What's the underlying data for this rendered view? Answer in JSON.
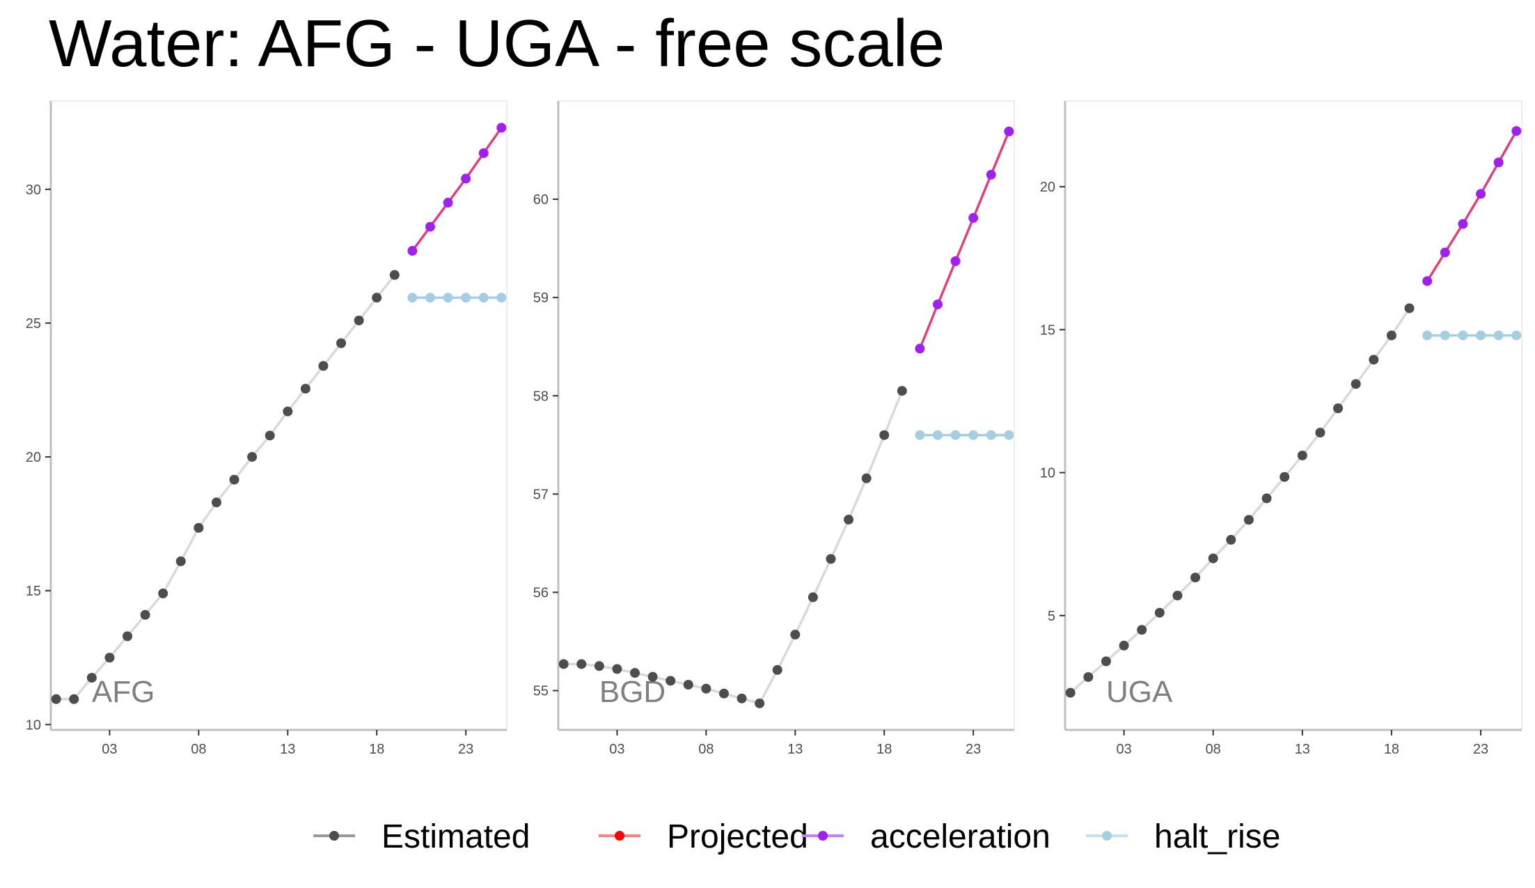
{
  "title": "Water: AFG - UGA - free scale",
  "colors": {
    "estimated_point": "#4d4d4d",
    "estimated_line": "#d9d9d9",
    "projected": "#ff0000",
    "acceleration_point": "#a020f0",
    "acceleration_line": "#e0407a",
    "halt_rise": "#a6cee3",
    "axis": "#bfbfbf",
    "tick_label": "#4d4d4d",
    "country_label": "#808080"
  },
  "legend": [
    {
      "key": "estimated",
      "label": "Estimated",
      "color": "#4d4d4d",
      "line": "#999999"
    },
    {
      "key": "projected",
      "label": "Projected",
      "color": "#ff0000",
      "line": "#ff8080"
    },
    {
      "key": "acceleration",
      "label": "acceleration",
      "color": "#a020f0",
      "line": "#c77dff"
    },
    {
      "key": "halt_rise",
      "label": "halt_rise",
      "color": "#a6cee3",
      "line": "#c8dff0"
    }
  ],
  "chart_data": [
    {
      "type": "line",
      "panel_label": "AFG",
      "x_ticks": [
        3,
        8,
        13,
        18,
        23
      ],
      "x_tick_labels": [
        "03",
        "08",
        "13",
        "18",
        "23"
      ],
      "y_ticks": [
        10,
        15,
        20,
        25,
        30
      ],
      "xlim": [
        -0.3,
        25.3
      ],
      "ylim": [
        9.8,
        33.3
      ],
      "series": [
        {
          "name": "Estimated",
          "x": [
            0,
            1,
            2,
            3,
            4,
            5,
            6,
            7,
            8,
            9,
            10,
            11,
            12,
            13,
            14,
            15,
            16,
            17,
            18,
            19
          ],
          "y": [
            10.95,
            10.95,
            11.75,
            12.5,
            13.3,
            14.1,
            14.9,
            16.1,
            17.35,
            18.3,
            19.15,
            20.0,
            20.8,
            21.7,
            22.55,
            23.4,
            24.25,
            25.1,
            25.95,
            26.8
          ]
        },
        {
          "name": "acceleration",
          "x": [
            20,
            21,
            22,
            23,
            24,
            25
          ],
          "y": [
            27.7,
            28.6,
            29.5,
            30.4,
            31.35,
            32.3
          ]
        },
        {
          "name": "halt_rise",
          "x": [
            20,
            21,
            22,
            23,
            24,
            25
          ],
          "y": [
            25.95,
            25.95,
            25.95,
            25.95,
            25.95,
            25.95
          ]
        }
      ]
    },
    {
      "type": "line",
      "panel_label": "BGD",
      "x_ticks": [
        3,
        8,
        13,
        18,
        23
      ],
      "x_tick_labels": [
        "03",
        "08",
        "13",
        "18",
        "23"
      ],
      "y_ticks": [
        55,
        56,
        57,
        58,
        59,
        60
      ],
      "xlim": [
        -0.3,
        25.3
      ],
      "ylim": [
        54.6,
        61.0
      ],
      "series": [
        {
          "name": "Estimated",
          "x": [
            0,
            1,
            2,
            3,
            4,
            5,
            6,
            7,
            8,
            9,
            10,
            11,
            12,
            13,
            14,
            15,
            16,
            17,
            18,
            19
          ],
          "y": [
            55.27,
            55.27,
            55.25,
            55.22,
            55.18,
            55.14,
            55.1,
            55.06,
            55.02,
            54.97,
            54.92,
            54.87,
            55.21,
            55.57,
            55.95,
            56.34,
            56.74,
            57.16,
            57.6,
            58.05
          ]
        },
        {
          "name": "acceleration",
          "x": [
            20,
            21,
            22,
            23,
            24,
            25
          ],
          "y": [
            58.48,
            58.93,
            59.37,
            59.81,
            60.25,
            60.69
          ]
        },
        {
          "name": "halt_rise",
          "x": [
            20,
            21,
            22,
            23,
            24,
            25
          ],
          "y": [
            57.6,
            57.6,
            57.6,
            57.6,
            57.6,
            57.6
          ]
        }
      ]
    },
    {
      "type": "line",
      "panel_label": "UGA",
      "x_ticks": [
        3,
        8,
        13,
        18,
        23
      ],
      "x_tick_labels": [
        "03",
        "08",
        "13",
        "18",
        "23"
      ],
      "y_ticks": [
        5,
        10,
        15,
        20
      ],
      "xlim": [
        -0.3,
        25.3
      ],
      "ylim": [
        1.0,
        23.0
      ],
      "series": [
        {
          "name": "Estimated",
          "x": [
            0,
            1,
            2,
            3,
            4,
            5,
            6,
            7,
            8,
            9,
            10,
            11,
            12,
            13,
            14,
            15,
            16,
            17,
            18,
            19
          ],
          "y": [
            2.3,
            2.85,
            3.4,
            3.95,
            4.5,
            5.1,
            5.7,
            6.33,
            7.0,
            7.65,
            8.35,
            9.1,
            9.85,
            10.6,
            11.4,
            12.25,
            13.1,
            13.95,
            14.8,
            15.75
          ]
        },
        {
          "name": "acceleration",
          "x": [
            20,
            21,
            22,
            23,
            24,
            25
          ],
          "y": [
            16.7,
            17.7,
            18.7,
            19.75,
            20.85,
            21.95
          ]
        },
        {
          "name": "halt_rise",
          "x": [
            20,
            21,
            22,
            23,
            24,
            25
          ],
          "y": [
            14.8,
            14.8,
            14.8,
            14.8,
            14.8,
            14.8
          ]
        }
      ]
    }
  ]
}
